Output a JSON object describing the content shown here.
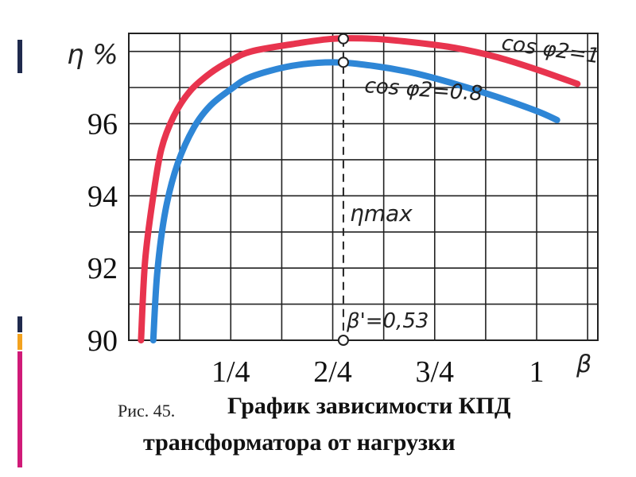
{
  "colors": {
    "series_red": "#e8344e",
    "series_blue": "#2e86d6",
    "grid": "#222222",
    "bar_navy": "#1f2a4d",
    "bar_orange": "#f3a21f",
    "bar_magenta": "#d01a78"
  },
  "chart_data": {
    "type": "line",
    "xlabel": "β",
    "ylabel": "η %",
    "xticks": [
      {
        "value": 0.25,
        "label": "1/4"
      },
      {
        "value": 0.5,
        "label": "2/4"
      },
      {
        "value": 0.75,
        "label": "3/4"
      },
      {
        "value": 1.0,
        "label": "1"
      }
    ],
    "yticks": [
      {
        "value": 90,
        "label": "90"
      },
      {
        "value": 92,
        "label": "92"
      },
      {
        "value": 94,
        "label": "94"
      },
      {
        "value": 96,
        "label": "96"
      }
    ],
    "xlim": [
      0,
      1.15
    ],
    "ylim": [
      90,
      98.5
    ],
    "grid": true,
    "series": [
      {
        "name": "cos φ2=1",
        "color": "#e8344e",
        "x": [
          0.03,
          0.04,
          0.06,
          0.08,
          0.11,
          0.15,
          0.2,
          0.25,
          0.3,
          0.4,
          0.5,
          0.6,
          0.7,
          0.8,
          0.9,
          1.0,
          1.1
        ],
        "y": [
          90.0,
          92.2,
          94.0,
          95.3,
          96.2,
          96.9,
          97.4,
          97.75,
          98.0,
          98.2,
          98.35,
          98.35,
          98.25,
          98.1,
          97.85,
          97.5,
          97.1
        ]
      },
      {
        "name": "cos φ2=0.8",
        "color": "#2e86d6",
        "x": [
          0.06,
          0.07,
          0.09,
          0.12,
          0.16,
          0.2,
          0.25,
          0.3,
          0.4,
          0.5,
          0.6,
          0.7,
          0.8,
          0.9,
          1.0,
          1.05
        ],
        "y": [
          90.0,
          91.9,
          93.6,
          94.9,
          95.9,
          96.5,
          96.95,
          97.3,
          97.6,
          97.7,
          97.6,
          97.4,
          97.1,
          96.75,
          96.35,
          96.1
        ]
      }
    ],
    "annotations": {
      "eta_max_label": "ηmax",
      "beta_label": "β'=0,53",
      "beta_value": 0.53,
      "red_peak": 98.35,
      "blue_peak": 97.7
    }
  },
  "caption": {
    "prefix": "Рис. 45.",
    "line1": "График зависимости КПД",
    "line2": "трансформатора от нагрузки"
  }
}
